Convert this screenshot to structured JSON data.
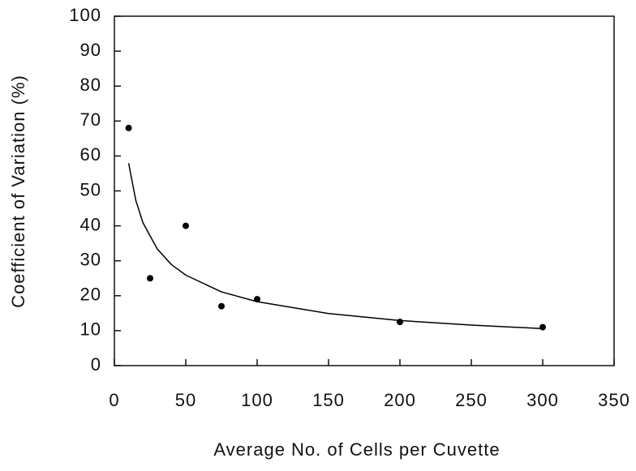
{
  "chart_data": {
    "type": "scatter",
    "xlabel": "Average No. of Cells per Cuvette",
    "ylabel": "Coefficient of Variation (%)",
    "xlim": [
      0,
      350
    ],
    "xticks": [
      0,
      50,
      100,
      150,
      200,
      250,
      300,
      350
    ],
    "ylim": [
      0,
      100
    ],
    "yticks": [
      0,
      10,
      20,
      30,
      40,
      50,
      60,
      70,
      80,
      90,
      100
    ],
    "series": [
      {
        "type": "scatter",
        "color": "#000000",
        "x": [
          10,
          25,
          50,
          75,
          100,
          200,
          300
        ],
        "values": [
          68,
          25,
          40,
          17,
          19,
          12.5,
          11
        ]
      },
      {
        "type": "line",
        "color": "#000000",
        "x": [
          10,
          15,
          20,
          30,
          40,
          50,
          75,
          100,
          150,
          200,
          250,
          300
        ],
        "values": [
          57.9,
          47.3,
          40.9,
          33.4,
          28.9,
          25.9,
          21.1,
          18.3,
          14.9,
          12.9,
          11.6,
          10.6
        ]
      }
    ]
  }
}
